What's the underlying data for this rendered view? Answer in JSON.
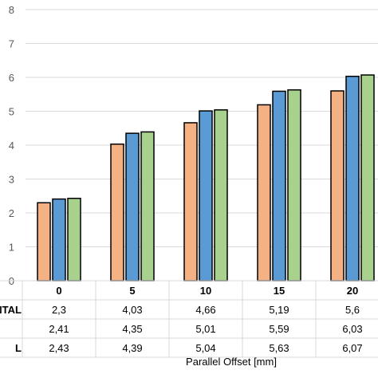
{
  "chart_data": {
    "type": "bar",
    "xlabel": "Parallel Offset [mm]",
    "categories": [
      "0",
      "5",
      "10",
      "15",
      "20"
    ],
    "ylim": [
      0,
      8
    ],
    "yticks": [
      0,
      1,
      2,
      3,
      4,
      5,
      6,
      7,
      8
    ],
    "grid": true,
    "series": [
      {
        "name": "NTAL",
        "color": "#F4B183",
        "values": [
          2.3,
          4.03,
          4.66,
          5.19,
          5.6
        ],
        "labels": [
          "2,3",
          "4,03",
          "4,66",
          "5,19",
          "5,6"
        ]
      },
      {
        "name": "",
        "color": "#5B9BD5",
        "values": [
          2.41,
          4.35,
          5.01,
          5.59,
          6.03
        ],
        "labels": [
          "2,41",
          "4,35",
          "5,01",
          "5,59",
          "6,03"
        ]
      },
      {
        "name": "L",
        "color": "#A9D18E",
        "values": [
          2.43,
          4.39,
          5.04,
          5.63,
          6.07
        ],
        "labels": [
          "2,43",
          "4,39",
          "5,04",
          "5,63",
          "6,07"
        ]
      }
    ]
  }
}
